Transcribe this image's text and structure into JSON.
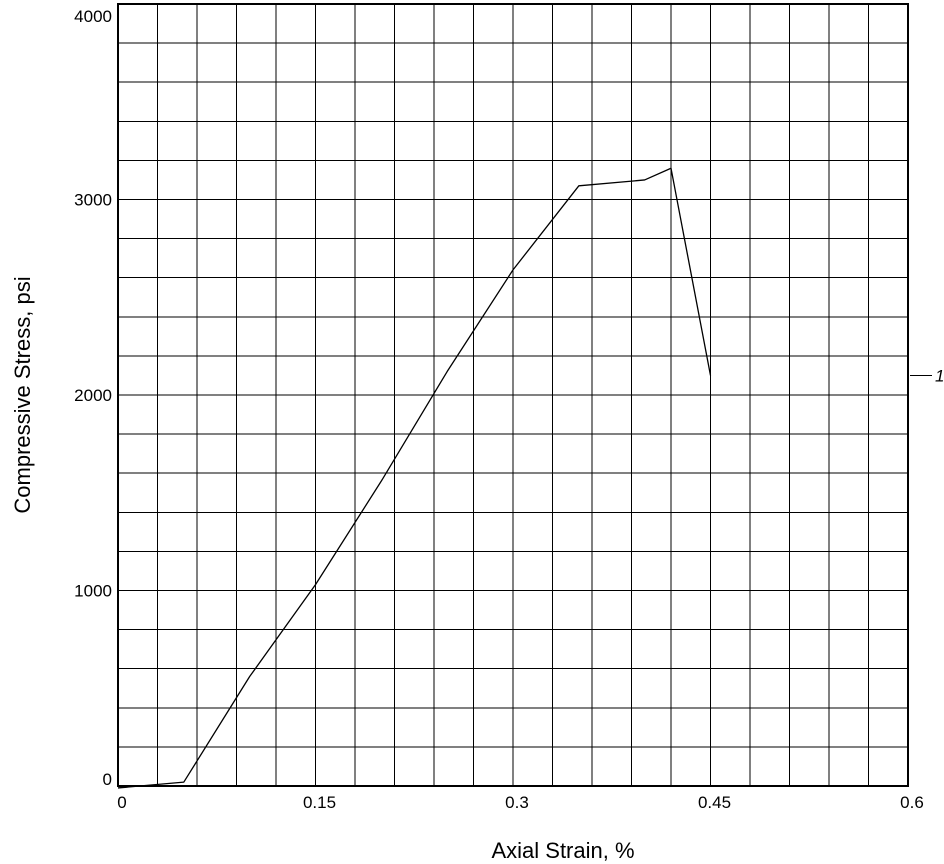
{
  "chart_data": {
    "type": "line",
    "title": "",
    "xlabel": "Axial Strain, %",
    "ylabel": "Compressive Stress, psi",
    "xlim": [
      0,
      0.6
    ],
    "ylim": [
      0,
      4000
    ],
    "x_ticks": [
      0,
      0.15,
      0.3,
      0.45,
      0.6
    ],
    "x_tick_labels": [
      "0",
      "0.15",
      "0.3",
      "0.45",
      "0.6"
    ],
    "y_ticks": [
      0,
      1000,
      2000,
      3000,
      4000
    ],
    "y_tick_labels": [
      "0",
      "1000",
      "2000",
      "3000",
      "4000"
    ],
    "x_minor_step": 0.03,
    "y_minor_step": 200,
    "grid": true,
    "series": [
      {
        "name": "1",
        "x": [
          0,
          0.05,
          0.1,
          0.15,
          0.2,
          0.25,
          0.3,
          0.35,
          0.4,
          0.42,
          0.45
        ],
        "y": [
          -10,
          20,
          560,
          1030,
          1560,
          2120,
          2640,
          3070,
          3100,
          3160,
          2100
        ]
      }
    ]
  }
}
